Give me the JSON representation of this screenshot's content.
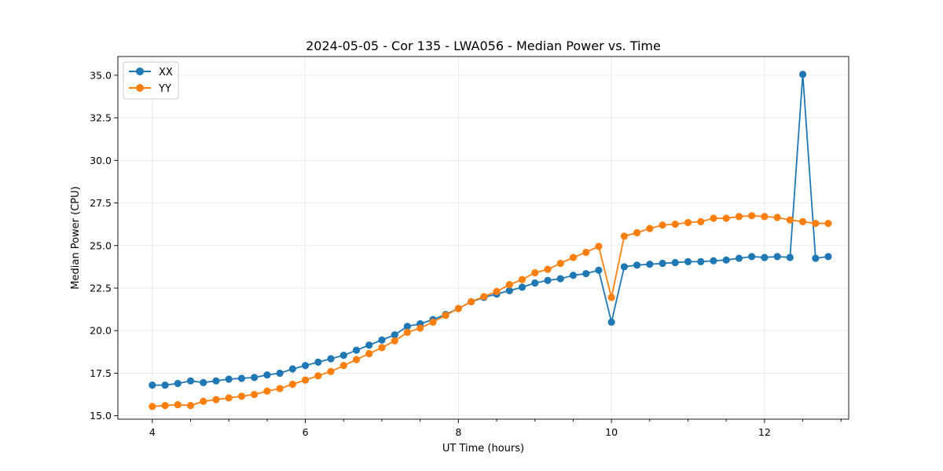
{
  "chart_data": {
    "type": "line",
    "title": "2024-05-05 - Cor 135 - LWA056 - Median Power vs. Time",
    "xlabel": "UT Time (hours)",
    "ylabel": "Median Power (CPU)",
    "xlim": [
      3.55,
      13.1
    ],
    "ylim": [
      14.8,
      36.1
    ],
    "xticks": [
      4,
      6,
      8,
      10,
      12
    ],
    "xtick_labels": [
      "4",
      "6",
      "8",
      "10",
      "12"
    ],
    "yticks": [
      15.0,
      17.5,
      20.0,
      22.5,
      25.0,
      27.5,
      30.0,
      32.5,
      35.0
    ],
    "ytick_labels": [
      "15.0",
      "17.5",
      "20.0",
      "22.5",
      "25.0",
      "27.5",
      "30.0",
      "32.5",
      "35.0"
    ],
    "grid": true,
    "legend_position": "top-left",
    "x": [
      4.0,
      4.167,
      4.333,
      4.5,
      4.667,
      4.833,
      5.0,
      5.167,
      5.333,
      5.5,
      5.667,
      5.833,
      6.0,
      6.167,
      6.333,
      6.5,
      6.667,
      6.833,
      7.0,
      7.167,
      7.333,
      7.5,
      7.667,
      7.833,
      8.0,
      8.167,
      8.333,
      8.5,
      8.667,
      8.833,
      9.0,
      9.167,
      9.333,
      9.5,
      9.667,
      9.833,
      10.0,
      10.167,
      10.333,
      10.5,
      10.667,
      10.833,
      11.0,
      11.167,
      11.333,
      11.5,
      11.667,
      11.833,
      12.0,
      12.167,
      12.333,
      12.5,
      12.667,
      12.833
    ],
    "series": [
      {
        "name": "XX",
        "color": "#1f77b4",
        "values": [
          16.8,
          16.8,
          16.9,
          17.05,
          16.95,
          17.05,
          17.15,
          17.2,
          17.25,
          17.4,
          17.5,
          17.75,
          17.95,
          18.15,
          18.35,
          18.55,
          18.85,
          19.15,
          19.45,
          19.75,
          20.25,
          20.4,
          20.65,
          20.95,
          21.3,
          21.7,
          21.95,
          22.15,
          22.35,
          22.55,
          22.8,
          22.95,
          23.05,
          23.25,
          23.35,
          23.55,
          20.5,
          23.75,
          23.85,
          23.9,
          23.95,
          24.0,
          24.05,
          24.05,
          24.1,
          24.15,
          24.25,
          24.35,
          24.3,
          24.35,
          24.3,
          35.05,
          24.25,
          24.35
        ]
      },
      {
        "name": "YY",
        "color": "#ff7f0e",
        "values": [
          15.55,
          15.6,
          15.65,
          15.6,
          15.85,
          15.95,
          16.05,
          16.15,
          16.25,
          16.45,
          16.6,
          16.85,
          17.1,
          17.35,
          17.6,
          17.95,
          18.3,
          18.65,
          19.0,
          19.4,
          19.9,
          20.15,
          20.5,
          20.9,
          21.3,
          21.7,
          22.0,
          22.3,
          22.7,
          23.0,
          23.4,
          23.6,
          23.95,
          24.3,
          24.6,
          24.95,
          21.95,
          25.55,
          25.75,
          26.0,
          26.2,
          26.25,
          26.35,
          26.4,
          26.6,
          26.6,
          26.7,
          26.75,
          26.7,
          26.65,
          26.5,
          26.4,
          26.3,
          26.3
        ]
      }
    ]
  }
}
